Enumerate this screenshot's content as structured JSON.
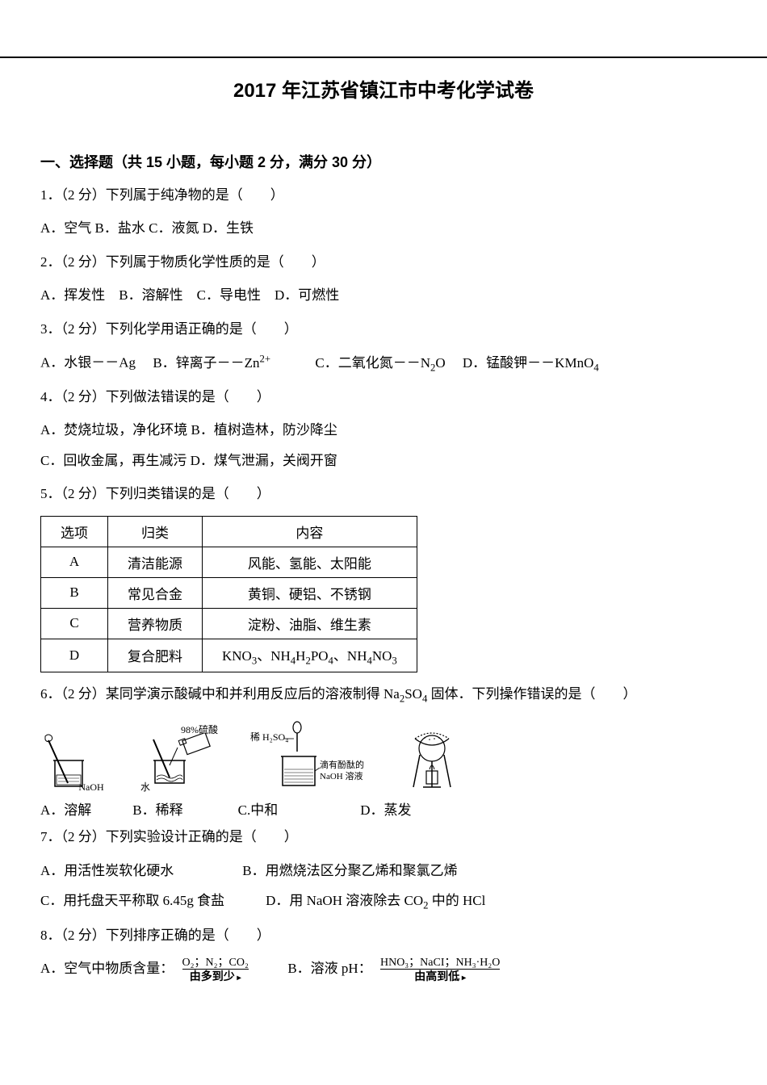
{
  "title": "2017 年江苏省镇江市中考化学试卷",
  "section1": {
    "header": "一、选择题（共 15 小题，每小题 2 分，满分 30 分）"
  },
  "q1": {
    "stem": "1．（2 分）下列属于纯净物的是（　　）",
    "opts": "A．空气 B．盐水 C．液氮 D．生铁"
  },
  "q2": {
    "stem": "2．（2 分）下列属于物质化学性质的是（　　）",
    "opts": "A．挥发性　B．溶解性　C．导电性　D．可燃性"
  },
  "q3": {
    "stem": "3．（2 分）下列化学用语正确的是（　　）",
    "optA": "A．水银－－Ag",
    "optB": "B．锌离子－－Zn",
    "zn_charge": "2+",
    "optC": "C．二氧化氮－－N",
    "optC2": "O",
    "optD": "D．锰酸钾－－KMnO",
    "sub2": "2",
    "sub4": "4"
  },
  "q4": {
    "stem": "4．（2 分）下列做法错误的是（　　）",
    "line1": "A．焚烧垃圾，净化环境 B．植树造林，防沙降尘",
    "line2": "C．回收金属，再生减污 D．煤气泄漏，关阀开窗"
  },
  "q5": {
    "stem": "5．（2 分）下列归类错误的是（　　）",
    "table": {
      "headers": [
        "选项",
        "归类",
        "内容"
      ],
      "rows": [
        {
          "opt": "A",
          "cat": "清洁能源",
          "content": "风能、氢能、太阳能"
        },
        {
          "opt": "B",
          "cat": "常见合金",
          "content": "黄铜、硬铝、不锈钢"
        },
        {
          "opt": "C",
          "cat": "营养物质",
          "content": "淀粉、油脂、维生素"
        },
        {
          "opt": "D",
          "cat": "复合肥料",
          "content_html": "KNO<span class='sub'>3</span>、NH<span class='sub'>4</span>H<span class='sub'>2</span>PO<span class='sub'>4</span>、NH<span class='sub'>4</span>NO<span class='sub'>3</span>"
        }
      ]
    }
  },
  "q6": {
    "stem_pre": "6．（2 分）某同学演示酸碱中和并利用反应后的溶液制得 Na",
    "stem_mid": "SO",
    "stem_post": " 固体．下列操作错误的是（　　）",
    "figA_label": "NaOH",
    "figB_top": "98%硫酸",
    "figB_bottom": "水",
    "figC_top": "稀 H₂SO₄",
    "figC_right1": "滴有酚酞的",
    "figC_right2": "NaOH 溶液",
    "labels": "A．溶解　　　B．稀释　　　　C.中和　　　　　　D．蒸发"
  },
  "q7": {
    "stem": "7．（2 分）下列实验设计正确的是（　　）",
    "line1": "A．用活性炭软化硬水　　　　　B．用燃烧法区分聚乙烯和聚氯乙烯",
    "line2_a": "C．用托盘天平称取 6.45g 食盐　　　D．用 NaOH 溶液除去 CO",
    "line2_b": " 中的 HCl"
  },
  "q8": {
    "stem": "8．（2 分）下列排序正确的是（　　）",
    "optA_label": "A．空气中物质含量：",
    "optA_top": "O₂；N₂；CO₂",
    "optA_bottom": "由多到少",
    "optB_label": "B．溶液 pH：",
    "optB_top": "HNO₃；NaCI；NH₃·H₂O",
    "optB_bottom": "由高到低"
  }
}
